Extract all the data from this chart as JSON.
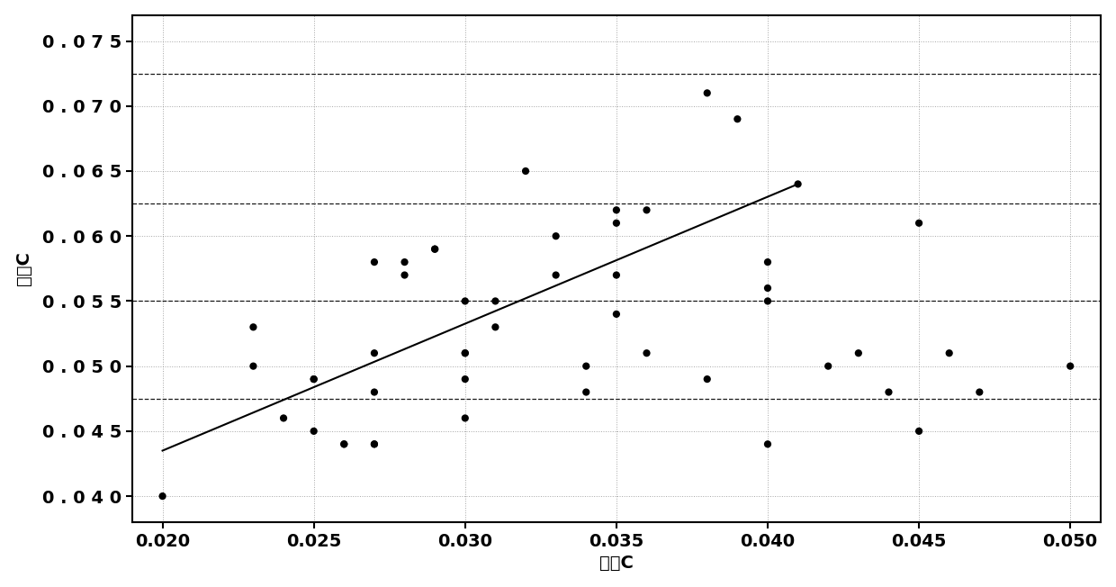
{
  "scatter_x": [
    0.02,
    0.023,
    0.023,
    0.024,
    0.025,
    0.025,
    0.025,
    0.026,
    0.026,
    0.027,
    0.027,
    0.027,
    0.027,
    0.027,
    0.028,
    0.028,
    0.029,
    0.029,
    0.03,
    0.03,
    0.03,
    0.03,
    0.03,
    0.031,
    0.031,
    0.032,
    0.033,
    0.033,
    0.034,
    0.034,
    0.035,
    0.035,
    0.035,
    0.035,
    0.036,
    0.036,
    0.038,
    0.038,
    0.039,
    0.04,
    0.04,
    0.04,
    0.04,
    0.041,
    0.042,
    0.043,
    0.044,
    0.045,
    0.045,
    0.046,
    0.047,
    0.05
  ],
  "scatter_y": [
    0.04,
    0.053,
    0.05,
    0.046,
    0.045,
    0.049,
    0.049,
    0.044,
    0.044,
    0.048,
    0.044,
    0.044,
    0.051,
    0.058,
    0.058,
    0.057,
    0.059,
    0.059,
    0.051,
    0.051,
    0.055,
    0.049,
    0.046,
    0.055,
    0.053,
    0.065,
    0.06,
    0.057,
    0.05,
    0.048,
    0.061,
    0.062,
    0.057,
    0.054,
    0.062,
    0.051,
    0.071,
    0.049,
    0.069,
    0.058,
    0.056,
    0.044,
    0.055,
    0.064,
    0.05,
    0.051,
    0.048,
    0.061,
    0.045,
    0.051,
    0.048,
    0.05
  ],
  "line_x": [
    0.02,
    0.041
  ],
  "line_y": [
    0.0435,
    0.064
  ],
  "xlim": [
    0.019,
    0.051
  ],
  "ylim": [
    0.038,
    0.077
  ],
  "xticks": [
    0.02,
    0.025,
    0.03,
    0.035,
    0.04,
    0.045,
    0.05
  ],
  "yticks": [
    0.04,
    0.045,
    0.05,
    0.055,
    0.06,
    0.065,
    0.07,
    0.075
  ],
  "xlabel": "氧站C",
  "ylabel": "中包C",
  "hlines": [
    0.0725,
    0.0625,
    0.055,
    0.0475
  ],
  "background_color": "#ffffff",
  "dot_color": "#000000",
  "line_color": "#000000",
  "ytick_labels": [
    "0 . 0 4 0",
    "0 . 0 4 5",
    "0 . 0 5 0",
    "0 . 0 5 5",
    "0 . 0 6 0",
    "0 . 0 6 5",
    "0 . 0 7 0",
    "0 . 0 7 5"
  ],
  "xtick_labels": [
    "0.020",
    "0.025",
    "0.030",
    "0.035",
    "0.040",
    "0.045",
    "0.050"
  ]
}
